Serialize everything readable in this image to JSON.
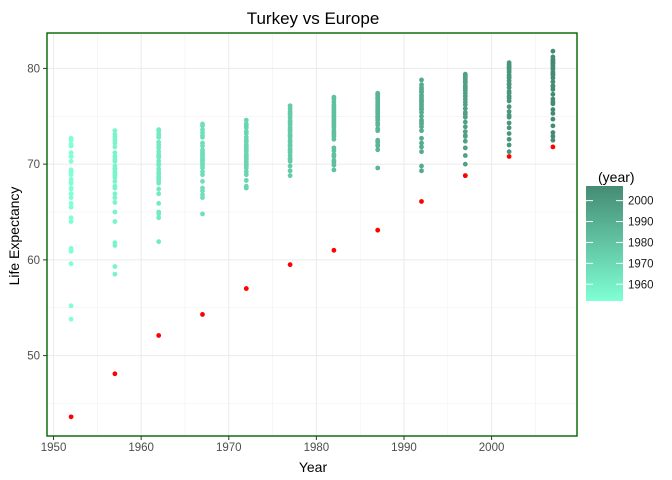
{
  "chart_data": {
    "type": "scatter",
    "title": "Turkey vs Europe",
    "xlabel": "Year",
    "ylabel": "Life Expectancy",
    "xlim": [
      1949.25,
      2009.75
    ],
    "ylim": [
      41.6,
      83.7
    ],
    "x_ticks": [
      1950,
      1960,
      1970,
      1980,
      1990,
      2000
    ],
    "y_ticks": [
      50,
      60,
      70,
      80
    ],
    "grid": true,
    "legend": {
      "title": "(year)",
      "position": "right",
      "ticks": [
        1960,
        1970,
        1980,
        1990,
        2000
      ],
      "range": [
        1952,
        2007
      ],
      "color_low": "#7fffd4",
      "color_high": "#458b74"
    },
    "highlight_color": "#ff0000",
    "panel_border_color": "#006400",
    "series": [
      {
        "x": [
          1952,
          1952,
          1952,
          1952,
          1952,
          1952,
          1952,
          1952,
          1952,
          1952,
          1952,
          1952,
          1952,
          1952,
          1952,
          1952,
          1952,
          1952,
          1952,
          1952,
          1952,
          1952,
          1952,
          1952,
          1952,
          1952,
          1952,
          1952,
          1952,
          1957,
          1957,
          1957,
          1957,
          1957,
          1957,
          1957,
          1957,
          1957,
          1957,
          1957,
          1957,
          1957,
          1957,
          1957,
          1957,
          1957,
          1957,
          1957,
          1957,
          1957,
          1957,
          1957,
          1957,
          1957,
          1957,
          1957,
          1957,
          1957,
          1962,
          1962,
          1962,
          1962,
          1962,
          1962,
          1962,
          1962,
          1962,
          1962,
          1962,
          1962,
          1962,
          1962,
          1962,
          1962,
          1962,
          1962,
          1962,
          1962,
          1962,
          1962,
          1962,
          1962,
          1962,
          1962,
          1962,
          1962,
          1962,
          1967,
          1967,
          1967,
          1967,
          1967,
          1967,
          1967,
          1967,
          1967,
          1967,
          1967,
          1967,
          1967,
          1967,
          1967,
          1967,
          1967,
          1967,
          1967,
          1967,
          1967,
          1967,
          1967,
          1967,
          1967,
          1967,
          1967,
          1967,
          1967,
          1972,
          1972,
          1972,
          1972,
          1972,
          1972,
          1972,
          1972,
          1972,
          1972,
          1972,
          1972,
          1972,
          1972,
          1972,
          1972,
          1972,
          1972,
          1972,
          1972,
          1972,
          1972,
          1972,
          1972,
          1972,
          1972,
          1972,
          1972,
          1972,
          1977,
          1977,
          1977,
          1977,
          1977,
          1977,
          1977,
          1977,
          1977,
          1977,
          1977,
          1977,
          1977,
          1977,
          1977,
          1977,
          1977,
          1977,
          1977,
          1977,
          1977,
          1977,
          1977,
          1977,
          1977,
          1977,
          1977,
          1977,
          1977,
          1982,
          1982,
          1982,
          1982,
          1982,
          1982,
          1982,
          1982,
          1982,
          1982,
          1982,
          1982,
          1982,
          1982,
          1982,
          1982,
          1982,
          1982,
          1982,
          1982,
          1982,
          1982,
          1982,
          1982,
          1982,
          1982,
          1982,
          1982,
          1982,
          1987,
          1987,
          1987,
          1987,
          1987,
          1987,
          1987,
          1987,
          1987,
          1987,
          1987,
          1987,
          1987,
          1987,
          1987,
          1987,
          1987,
          1987,
          1987,
          1987,
          1987,
          1987,
          1987,
          1987,
          1987,
          1987,
          1987,
          1987,
          1987,
          1992,
          1992,
          1992,
          1992,
          1992,
          1992,
          1992,
          1992,
          1992,
          1992,
          1992,
          1992,
          1992,
          1992,
          1992,
          1992,
          1992,
          1992,
          1992,
          1992,
          1992,
          1992,
          1992,
          1992,
          1992,
          1992,
          1992,
          1992,
          1992,
          1997,
          1997,
          1997,
          1997,
          1997,
          1997,
          1997,
          1997,
          1997,
          1997,
          1997,
          1997,
          1997,
          1997,
          1997,
          1997,
          1997,
          1997,
          1997,
          1997,
          1997,
          1997,
          1997,
          1997,
          1997,
          1997,
          1997,
          1997,
          1997,
          2002,
          2002,
          2002,
          2002,
          2002,
          2002,
          2002,
          2002,
          2002,
          2002,
          2002,
          2002,
          2002,
          2002,
          2002,
          2002,
          2002,
          2002,
          2002,
          2002,
          2002,
          2002,
          2002,
          2002,
          2002,
          2002,
          2002,
          2002,
          2002,
          2007,
          2007,
          2007,
          2007,
          2007,
          2007,
          2007,
          2007,
          2007,
          2007,
          2007,
          2007,
          2007,
          2007,
          2007,
          2007,
          2007,
          2007,
          2007,
          2007,
          2007,
          2007,
          2007,
          2007,
          2007,
          2007,
          2007,
          2007,
          2007
        ],
        "y": [
          55.2,
          53.8,
          59.6,
          61.2,
          60.9,
          64.0,
          65.5,
          65.9,
          66.5,
          66.9,
          67.4,
          67.5,
          68.0,
          68.1,
          68.4,
          68.9,
          69.2,
          69.4,
          70.3,
          70.8,
          71.2,
          71.9,
          72.5,
          72.7,
          70.8,
          72.0,
          64.4,
          66.9,
          72.1,
          59.3,
          58.5,
          61.5,
          61.8,
          64.0,
          65.0,
          66.0,
          66.9,
          67.5,
          67.7,
          68.2,
          68.6,
          68.8,
          69.0,
          69.2,
          69.5,
          69.8,
          70.3,
          70.5,
          70.8,
          71.2,
          71.8,
          72.2,
          72.5,
          72.8,
          73.1,
          73.5,
          66.5,
          69.5,
          61.9,
          64.4,
          64.8,
          65.0,
          65.9,
          66.9,
          67.4,
          68.0,
          68.3,
          68.7,
          69.0,
          69.2,
          69.5,
          69.9,
          70.0,
          70.3,
          70.7,
          70.8,
          71.0,
          71.3,
          71.7,
          72.0,
          72.3,
          72.8,
          73.0,
          73.2,
          73.5,
          73.6,
          68.5,
          64.8,
          66.5,
          66.8,
          67.2,
          67.5,
          68.2,
          68.9,
          69.2,
          69.6,
          69.8,
          70.0,
          70.1,
          70.3,
          70.4,
          70.6,
          70.8,
          71.0,
          71.1,
          71.3,
          71.5,
          71.9,
          72.2,
          72.8,
          73.0,
          73.3,
          73.6,
          74.0,
          74.2,
          70.5,
          67.5,
          67.7,
          68.3,
          68.9,
          69.2,
          69.6,
          69.8,
          70.0,
          70.3,
          70.5,
          70.6,
          70.8,
          70.9,
          71.0,
          71.3,
          71.5,
          71.6,
          71.8,
          72.0,
          72.3,
          72.5,
          72.8,
          73.2,
          73.4,
          73.8,
          74.0,
          74.2,
          74.6,
          70.2,
          68.8,
          69.3,
          69.8,
          70.3,
          70.6,
          70.9,
          71.2,
          71.6,
          71.9,
          72.3,
          72.5,
          72.8,
          73.1,
          73.4,
          73.6,
          73.8,
          74.1,
          74.3,
          74.5,
          74.8,
          75.1,
          75.3,
          75.5,
          75.8,
          76.1,
          72.0,
          73.0,
          70.5,
          71.4,
          69.4,
          69.9,
          70.4,
          70.8,
          71.0,
          71.4,
          72.6,
          72.9,
          73.1,
          73.5,
          73.8,
          74.0,
          74.2,
          74.4,
          74.6,
          74.8,
          75.2,
          75.4,
          75.6,
          75.8,
          76.0,
          76.2,
          76.5,
          76.8,
          77.0,
          70.2,
          71.7,
          73.3,
          75.0,
          69.6,
          71.5,
          71.9,
          72.3,
          72.5,
          73.5,
          74.1,
          74.3,
          74.6,
          74.8,
          75.0,
          75.2,
          75.4,
          75.6,
          75.8,
          76.0,
          76.2,
          76.4,
          76.6,
          76.8,
          77.0,
          77.2,
          77.4,
          74.9,
          73.7,
          72.0,
          75.5,
          76.9,
          77.3,
          69.3,
          69.8,
          71.3,
          71.8,
          72.2,
          72.7,
          73.5,
          73.9,
          74.2,
          74.6,
          75.0,
          75.4,
          75.7,
          76.0,
          76.2,
          76.4,
          76.6,
          76.8,
          77.0,
          77.2,
          77.5,
          77.8,
          78.0,
          78.3,
          78.8,
          74.4,
          75.8,
          76.6,
          77.6,
          68.8,
          70.0,
          70.9,
          71.7,
          72.4,
          72.9,
          73.4,
          73.9,
          74.4,
          74.9,
          75.4,
          75.8,
          76.2,
          76.5,
          76.8,
          77.1,
          77.4,
          77.7,
          78.0,
          78.2,
          78.5,
          78.8,
          79.0,
          79.2,
          79.4,
          75.2,
          77.9,
          78.6,
          73.0,
          71.3,
          72.0,
          72.6,
          73.2,
          73.8,
          74.3,
          74.9,
          75.5,
          76.0,
          76.6,
          77.1,
          77.6,
          78.0,
          78.4,
          78.7,
          79.0,
          79.3,
          79.6,
          79.8,
          80.0,
          80.2,
          80.4,
          80.6,
          78.3,
          79.1,
          76.9,
          77.4,
          80.1,
          75.1,
          72.5,
          72.9,
          73.3,
          74.0,
          74.7,
          75.3,
          75.7,
          76.3,
          76.8,
          77.3,
          77.8,
          78.2,
          78.6,
          79.0,
          79.3,
          79.6,
          79.9,
          80.1,
          80.3,
          80.5,
          80.7,
          80.9,
          81.2,
          81.8,
          79.4,
          78.1,
          76.5,
          80.6,
          80.9
        ]
      },
      {
        "name": "",
        "x": [
          1952,
          1957,
          1962,
          1967,
          1972,
          1977,
          1982,
          1987,
          1992,
          1997,
          2002,
          2007
        ],
        "y": [
          43.6,
          48.1,
          52.1,
          54.3,
          57.0,
          59.5,
          61.0,
          63.1,
          66.1,
          68.8,
          70.8,
          71.8
        ]
      }
    ]
  }
}
